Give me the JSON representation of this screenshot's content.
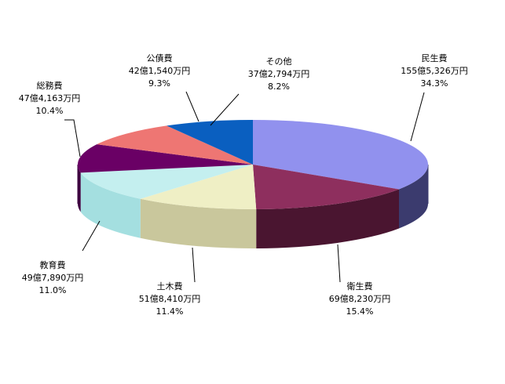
{
  "chart_data": {
    "type": "pie",
    "style": "3d-exploded-ellipse",
    "unit": "億円",
    "slices": [
      {
        "name": "民生費",
        "amount_label": "155億5,326万円",
        "percent": 34.3,
        "percent_label": "34.3%",
        "color": "#9191ee",
        "side_color": "#3b3b6e"
      },
      {
        "name": "衛生費",
        "amount_label": "69億8,230万円",
        "percent": 15.4,
        "percent_label": "15.4%",
        "color": "#8e2f5e",
        "side_color": "#4a1530"
      },
      {
        "name": "土木費",
        "amount_label": "51億8,410万円",
        "percent": 11.4,
        "percent_label": "11.4%",
        "color": "#efefc5",
        "side_color": "#c9c79c"
      },
      {
        "name": "教育費",
        "amount_label": "49億7,890万円",
        "percent": 11.0,
        "percent_label": "11.0%",
        "color": "#c4efef",
        "side_color": "#a4dfe0"
      },
      {
        "name": "総務費",
        "amount_label": "47億4,163万円",
        "percent": 10.4,
        "percent_label": "10.4%",
        "color": "#6a0065",
        "side_color": "#3e0040"
      },
      {
        "name": "公債費",
        "amount_label": "42億1,540万円",
        "percent": 9.3,
        "percent_label": "9.3%",
        "color": "#ee7673",
        "side_color": "#9a4340"
      },
      {
        "name": "その他",
        "amount_label": "37億2,794万円",
        "percent": 8.2,
        "percent_label": "8.2%",
        "color": "#0a5fc0",
        "side_color": "#063a78"
      }
    ]
  }
}
